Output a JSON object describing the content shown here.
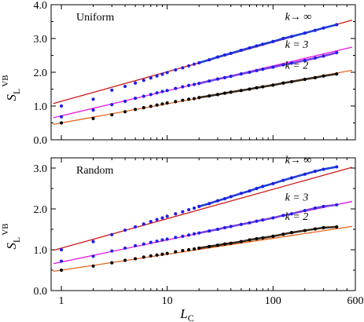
{
  "chart_data": [
    {
      "type": "scatter",
      "panel_label": "Uniform",
      "xscale": "log",
      "xlim": [
        0.8,
        600
      ],
      "ylim": [
        0.0,
        4.0
      ],
      "yticks": [
        "0.0",
        "1.0",
        "2.0",
        "3.0",
        "4.0"
      ],
      "series": [
        {
          "name": "k→ ∞",
          "label_x": 130,
          "label_y": 3.55,
          "dot_color": "#1f1fe6",
          "line_color": "#cc1a1a",
          "overlay_color": "#1f3fd6",
          "fit": {
            "intercept": 1.14,
            "slope_per_log10": 0.875
          },
          "x": [
            1,
            2,
            3,
            4,
            5,
            6,
            7,
            8,
            9,
            10,
            12,
            14,
            16,
            18,
            20,
            25,
            30,
            35,
            40,
            50,
            60,
            70,
            80,
            100,
            125,
            150,
            200,
            250,
            300,
            400
          ],
          "y": [
            1.0,
            1.2,
            1.47,
            1.58,
            1.68,
            1.76,
            1.83,
            1.89,
            1.94,
            1.99,
            2.07,
            2.13,
            2.19,
            2.24,
            2.28,
            2.37,
            2.45,
            2.51,
            2.56,
            2.65,
            2.72,
            2.78,
            2.83,
            2.91,
            3.0,
            3.06,
            3.16,
            3.24,
            3.31,
            3.41
          ]
        },
        {
          "name": "k = 3",
          "label_x": 130,
          "label_y": 2.72,
          "dot_color": "#1f1fe6",
          "line_color": "#e616e6",
          "overlay_color": "#7a3fe0",
          "fit": {
            "intercept": 0.71,
            "slope_per_log10": 0.74
          },
          "x": [
            1,
            2,
            3,
            4,
            5,
            6,
            7,
            8,
            9,
            10,
            12,
            14,
            16,
            18,
            20,
            25,
            30,
            35,
            40,
            50,
            60,
            70,
            80,
            100,
            125,
            150,
            200,
            250,
            300,
            400
          ],
          "y": [
            0.68,
            0.88,
            1.04,
            1.14,
            1.23,
            1.29,
            1.34,
            1.39,
            1.43,
            1.46,
            1.52,
            1.57,
            1.61,
            1.64,
            1.67,
            1.74,
            1.8,
            1.84,
            1.88,
            1.95,
            2.0,
            2.05,
            2.09,
            2.15,
            2.22,
            2.27,
            2.35,
            2.42,
            2.48,
            2.58
          ]
        },
        {
          "name": "k = 2",
          "label_x": 130,
          "label_y": 2.1,
          "dot_color": "#000000",
          "line_color": "#e8641a",
          "overlay_color": "#3a2a1a",
          "fit": {
            "intercept": 0.5,
            "slope_per_log10": 0.567
          },
          "x": [
            1,
            2,
            3,
            4,
            5,
            6,
            7,
            8,
            9,
            10,
            12,
            14,
            16,
            18,
            20,
            25,
            30,
            35,
            40,
            50,
            60,
            70,
            80,
            100,
            125,
            150,
            200,
            250,
            300,
            400
          ],
          "y": [
            0.5,
            0.63,
            0.74,
            0.83,
            0.9,
            0.95,
            0.99,
            1.03,
            1.06,
            1.09,
            1.13,
            1.17,
            1.2,
            1.22,
            1.25,
            1.3,
            1.34,
            1.38,
            1.41,
            1.46,
            1.5,
            1.54,
            1.57,
            1.62,
            1.68,
            1.72,
            1.79,
            1.84,
            1.89,
            1.95
          ]
        }
      ]
    },
    {
      "type": "scatter",
      "panel_label": "Random",
      "xscale": "log",
      "xlim": [
        0.8,
        600
      ],
      "ylim": [
        0.0,
        3.25
      ],
      "yticks": [
        "0.0",
        "1.0",
        "2.0",
        "3.0"
      ],
      "xticks": [
        "1",
        "10",
        "100",
        "600"
      ],
      "xlabel_main": "L",
      "xlabel_sub": "C",
      "series": [
        {
          "name": "k→ ∞",
          "label_x": 130,
          "label_y": 3.12,
          "dot_color": "#1f1fe6",
          "line_color": "#cc1a1a",
          "overlay_color": "#1f3fd6",
          "fit": {
            "intercept": 1.04,
            "slope_per_log10": 0.72
          },
          "x": [
            1,
            2,
            3,
            4,
            5,
            6,
            7,
            8,
            9,
            10,
            12,
            14,
            16,
            18,
            20,
            25,
            30,
            35,
            40,
            50,
            60,
            70,
            80,
            100,
            125,
            150,
            200,
            250,
            300,
            400
          ],
          "y": [
            1.0,
            1.2,
            1.37,
            1.48,
            1.56,
            1.63,
            1.69,
            1.74,
            1.78,
            1.82,
            1.88,
            1.93,
            1.98,
            2.02,
            2.06,
            2.13,
            2.2,
            2.25,
            2.3,
            2.38,
            2.44,
            2.5,
            2.55,
            2.62,
            2.7,
            2.76,
            2.85,
            2.92,
            2.97,
            3.03
          ]
        },
        {
          "name": "k = 3",
          "label_x": 130,
          "label_y": 2.2,
          "dot_color": "#1f1fe6",
          "line_color": "#e616e6",
          "overlay_color": "#7a3fe0",
          "fit": {
            "intercept": 0.7,
            "slope_per_log10": 0.54
          },
          "x": [
            1,
            2,
            3,
            4,
            5,
            6,
            7,
            8,
            9,
            10,
            12,
            14,
            16,
            18,
            20,
            25,
            30,
            35,
            40,
            50,
            60,
            70,
            80,
            100,
            125,
            150,
            200,
            250,
            300,
            400
          ],
          "y": [
            0.72,
            0.84,
            0.97,
            1.04,
            1.1,
            1.14,
            1.18,
            1.21,
            1.24,
            1.26,
            1.3,
            1.33,
            1.36,
            1.39,
            1.41,
            1.46,
            1.5,
            1.54,
            1.57,
            1.62,
            1.66,
            1.7,
            1.73,
            1.78,
            1.84,
            1.88,
            1.96,
            2.02,
            2.06,
            2.1
          ]
        },
        {
          "name": "k = 2",
          "label_x": 130,
          "label_y": 1.73,
          "dot_color": "#000000",
          "line_color": "#e8641a",
          "overlay_color": "#3a2a1a",
          "fit": {
            "intercept": 0.5,
            "slope_per_log10": 0.39
          },
          "x": [
            1,
            2,
            3,
            4,
            5,
            6,
            7,
            8,
            9,
            10,
            12,
            14,
            16,
            18,
            20,
            25,
            30,
            35,
            40,
            50,
            60,
            70,
            80,
            100,
            125,
            150,
            200,
            250,
            300,
            400
          ],
          "y": [
            0.5,
            0.6,
            0.68,
            0.74,
            0.78,
            0.82,
            0.85,
            0.87,
            0.89,
            0.91,
            0.95,
            0.98,
            1.0,
            1.02,
            1.04,
            1.08,
            1.11,
            1.14,
            1.16,
            1.2,
            1.24,
            1.27,
            1.29,
            1.33,
            1.38,
            1.42,
            1.47,
            1.51,
            1.54,
            1.56
          ]
        }
      ]
    }
  ],
  "ylabel": {
    "main": "S",
    "sub": "L",
    "sup": "VB"
  }
}
